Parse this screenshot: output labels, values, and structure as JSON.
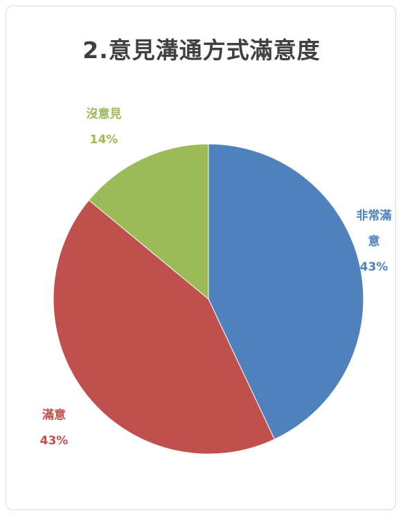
{
  "chart_data": {
    "type": "pie",
    "title": "2.意見溝通方式滿意度",
    "slices": [
      {
        "label_lines": [
          "非常滿",
          "意"
        ],
        "percent_label": "43%",
        "value": 43,
        "color": "#4f81bd"
      },
      {
        "label_lines": [
          "滿意"
        ],
        "percent_label": "43%",
        "value": 43,
        "color": "#c0504d"
      },
      {
        "label_lines": [
          "沒意見"
        ],
        "percent_label": "14%",
        "value": 14,
        "color": "#9bbb59"
      }
    ],
    "legend": "none",
    "start_angle": "12 o'clock",
    "direction": "clockwise"
  }
}
